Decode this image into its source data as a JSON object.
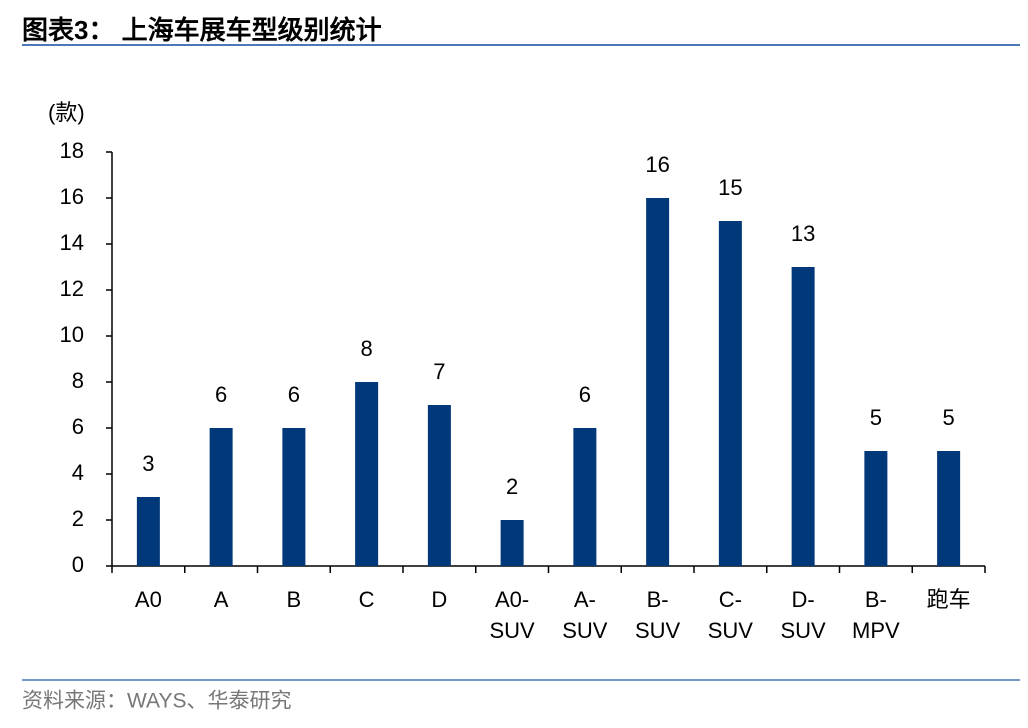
{
  "chart_data": {
    "type": "bar",
    "title": "图表3：  上海车展车型级别统计",
    "y_label": "(款)",
    "source": "资料来源：WAYS、华泰研究",
    "categories": [
      "A0",
      "A",
      "B",
      "C",
      "D",
      "A0-\nSUV",
      "A-\nSUV",
      "B-\nSUV",
      "C-\nSUV",
      "D-\nSUV",
      "B-\nMPV",
      "跑车"
    ],
    "values": [
      3,
      6,
      6,
      8,
      7,
      2,
      6,
      16,
      15,
      13,
      5,
      5
    ],
    "color": "#00387a",
    "ylim": [
      0,
      18
    ],
    "yticks": [
      0,
      2,
      4,
      6,
      8,
      10,
      12,
      14,
      16,
      18
    ],
    "grid": false
  }
}
